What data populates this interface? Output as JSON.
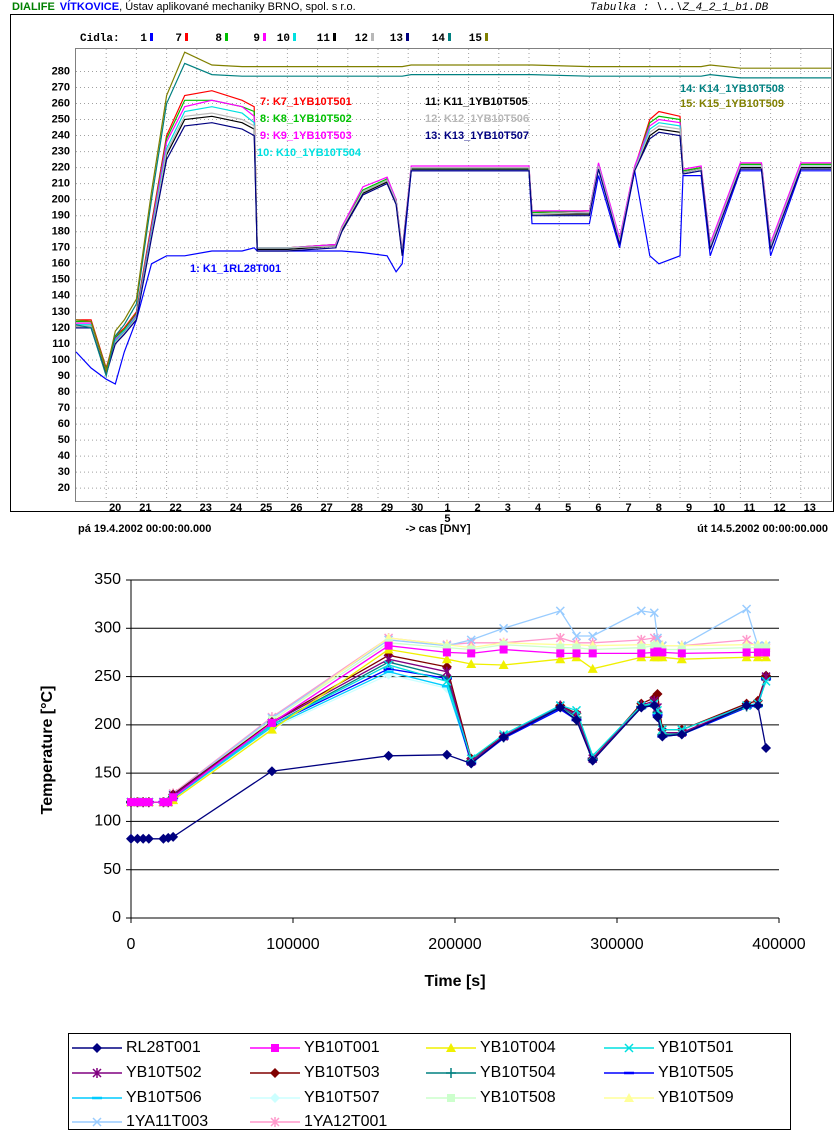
{
  "chart_data": [
    {
      "type": "line",
      "header": [
        "DIALIFE",
        "VÍTKOVICE",
        ", Ústav aplikované mechaniky BRNO, spol. s r.o."
      ],
      "subtitle": "Tabulka : \\..\\Z_4_2_1_b1.DB",
      "legend_title": "Cidla:",
      "x_start_label": "pá 19.4.2002 00:00:00.000",
      "x_end_label": "út 14.5.2002 00:00:00.000",
      "xlabel": "-> cas [DNY]",
      "month_label": "5",
      "xlim": [
        0,
        25
      ],
      "ylim": [
        12,
        294
      ],
      "grid": true,
      "xticks": [
        {
          "value": 1,
          "label": "20"
        },
        {
          "value": 2,
          "label": "21"
        },
        {
          "value": 3,
          "label": "22"
        },
        {
          "value": 4,
          "label": "23"
        },
        {
          "value": 5,
          "label": "24"
        },
        {
          "value": 6,
          "label": "25"
        },
        {
          "value": 7,
          "label": "26"
        },
        {
          "value": 8,
          "label": "27"
        },
        {
          "value": 9,
          "label": "28"
        },
        {
          "value": 10,
          "label": "29"
        },
        {
          "value": 11,
          "label": "30"
        },
        {
          "value": 12,
          "label": "1"
        },
        {
          "value": 13,
          "label": "2"
        },
        {
          "value": 14,
          "label": "3"
        },
        {
          "value": 15,
          "label": "4"
        },
        {
          "value": 16,
          "label": "5"
        },
        {
          "value": 17,
          "label": "6"
        },
        {
          "value": 18,
          "label": "7"
        },
        {
          "value": 19,
          "label": "8"
        },
        {
          "value": 20,
          "label": "9"
        },
        {
          "value": 21,
          "label": "10"
        },
        {
          "value": 22,
          "label": "11"
        },
        {
          "value": 23,
          "label": "12"
        },
        {
          "value": 24,
          "label": "13"
        }
      ],
      "yticks": [
        20,
        30,
        40,
        50,
        60,
        70,
        80,
        90,
        100,
        110,
        120,
        130,
        140,
        150,
        160,
        170,
        180,
        190,
        200,
        210,
        220,
        230,
        240,
        250,
        260,
        270,
        280
      ],
      "x": [
        0,
        0.5,
        1.0,
        1.3,
        1.6,
        2.0,
        2.5,
        3.0,
        3.6,
        4.5,
        5.5,
        5.9,
        6.0,
        7.0,
        8.6,
        8.8,
        9.5,
        10.3,
        10.6,
        10.8,
        11.1,
        13.0,
        15.0,
        15.1,
        17.0,
        17.3,
        18.0,
        18.5,
        19.0,
        19.3,
        20.0,
        20.1,
        20.7,
        21.0,
        22.0,
        22.7,
        23.0,
        24.0,
        25.0
      ],
      "series": [
        {
          "label": "1",
          "name": "1: K1_1RL28T001",
          "color": "#0000ff",
          "values": [
            105,
            95,
            88,
            85,
            105,
            125,
            160,
            165,
            165,
            168,
            168,
            170,
            168,
            168,
            168,
            168,
            167,
            165,
            155,
            160,
            218,
            218,
            218,
            185,
            185,
            215,
            170,
            218,
            165,
            160,
            165,
            215,
            215,
            165,
            218,
            218,
            165,
            218,
            218
          ]
        },
        {
          "label": "7",
          "name": "7: K7_1YB10T501",
          "color": "#ff0000",
          "values": [
            125,
            125,
            95,
            115,
            120,
            130,
            185,
            240,
            265,
            268,
            262,
            258,
            170,
            170,
            172,
            182,
            205,
            212,
            200,
            168,
            220,
            220,
            220,
            192,
            193,
            222,
            175,
            220,
            250,
            255,
            252,
            218,
            220,
            172,
            222,
            222,
            172,
            222,
            222
          ]
        },
        {
          "label": "8",
          "name": "8: K8_1YB10T502",
          "color": "#00c000",
          "values": [
            124,
            124,
            94,
            114,
            119,
            129,
            183,
            238,
            262,
            262,
            258,
            255,
            170,
            170,
            172,
            183,
            206,
            213,
            200,
            167,
            220,
            220,
            220,
            192,
            193,
            222,
            175,
            220,
            248,
            252,
            250,
            218,
            220,
            172,
            222,
            222,
            172,
            222,
            222
          ]
        },
        {
          "label": "9",
          "name": "9: K9_1YB10T503",
          "color": "#ff00ff",
          "values": [
            123,
            123,
            93,
            113,
            118,
            128,
            182,
            236,
            258,
            262,
            258,
            252,
            170,
            170,
            172,
            183,
            208,
            214,
            200,
            168,
            221,
            221,
            221,
            193,
            193,
            223,
            176,
            221,
            246,
            250,
            248,
            219,
            221,
            173,
            223,
            223,
            173,
            223,
            223
          ]
        },
        {
          "label": "10",
          "name": "10: K10_1YB10T504",
          "color": "#00e0e0",
          "values": [
            122,
            122,
            93,
            112,
            118,
            127,
            180,
            232,
            255,
            258,
            254,
            248,
            170,
            170,
            171,
            182,
            205,
            212,
            199,
            167,
            219,
            219,
            219,
            191,
            192,
            221,
            174,
            219,
            244,
            248,
            246,
            217,
            219,
            171,
            221,
            221,
            171,
            221,
            221
          ]
        },
        {
          "label": "11",
          "name": "11: K11_1YB10T505",
          "color": "#000000",
          "values": [
            121,
            121,
            92,
            111,
            117,
            126,
            178,
            228,
            250,
            252,
            248,
            244,
            169,
            169,
            171,
            181,
            204,
            211,
            198,
            166,
            219,
            219,
            219,
            191,
            191,
            220,
            173,
            219,
            240,
            244,
            242,
            217,
            219,
            170,
            220,
            220,
            170,
            220,
            220
          ]
        },
        {
          "label": "12",
          "name": "12: K12_1YB10T506",
          "color": "#b8b8b8",
          "values": [
            121,
            121,
            92,
            111,
            117,
            126,
            178,
            230,
            252,
            254,
            250,
            246,
            170,
            170,
            171,
            182,
            205,
            212,
            199,
            167,
            220,
            220,
            220,
            191,
            192,
            221,
            174,
            219,
            242,
            246,
            244,
            217,
            219,
            171,
            221,
            221,
            171,
            221,
            221
          ]
        },
        {
          "label": "13",
          "name": "13: K13_1YB10T507",
          "color": "#000080",
          "values": [
            120,
            120,
            91,
            110,
            116,
            125,
            176,
            225,
            246,
            248,
            244,
            240,
            168,
            168,
            170,
            180,
            203,
            210,
            197,
            165,
            218,
            218,
            218,
            190,
            190,
            219,
            172,
            218,
            238,
            242,
            240,
            216,
            218,
            169,
            219,
            219,
            169,
            219,
            219
          ]
        },
        {
          "label": "14",
          "name": "14: K14_1YB10T508",
          "color": "#008080",
          "values": [
            122,
            120,
            90,
            115,
            122,
            135,
            200,
            260,
            285,
            278,
            277,
            277,
            277,
            277,
            277,
            277,
            277,
            277,
            277,
            277,
            278,
            278,
            278,
            278,
            277,
            277,
            277,
            277,
            277,
            277,
            277,
            277,
            277,
            278,
            276,
            276,
            276,
            276,
            276
          ]
        },
        {
          "label": "15",
          "name": "15: K15_1YB10T509",
          "color": "#808000",
          "values": [
            125,
            124,
            93,
            118,
            125,
            138,
            205,
            265,
            292,
            284,
            283,
            283,
            283,
            283,
            283,
            283,
            283,
            283,
            283,
            283,
            284,
            284,
            284,
            284,
            283,
            283,
            283,
            283,
            283,
            283,
            283,
            283,
            283,
            284,
            282,
            282,
            282,
            282,
            282
          ]
        }
      ]
    },
    {
      "type": "scatter",
      "xlabel": "Time [s]",
      "ylabel": "Temperature [°C]",
      "xlim": [
        0,
        400000
      ],
      "ylim": [
        0,
        350
      ],
      "grid": true,
      "xticks": [
        0,
        100000,
        200000,
        300000,
        400000
      ],
      "yticks": [
        0,
        50,
        100,
        150,
        200,
        250,
        300,
        350
      ],
      "x": [
        0,
        4000,
        7500,
        11000,
        20000,
        23000,
        26000,
        87000,
        159000,
        195000,
        210000,
        230000,
        265000,
        275000,
        285000,
        315000,
        323000,
        325000,
        328000,
        340000,
        380000,
        387000,
        392000
      ],
      "series": [
        {
          "name": "RL28T001",
          "color": "#000080",
          "marker": "diamond",
          "values": [
            82,
            82,
            82,
            82,
            82,
            83,
            84,
            152,
            168,
            169,
            160,
            187,
            218,
            205,
            163,
            218,
            220,
            208,
            188,
            190,
            220,
            220,
            176
          ]
        },
        {
          "name": "YB10T001",
          "color": "#ff00ff",
          "marker": "square",
          "values": [
            120,
            120,
            120,
            120,
            120,
            120,
            125,
            202,
            282,
            275,
            274,
            278,
            274,
            274,
            274,
            274,
            275,
            276,
            275,
            274,
            275,
            275,
            275
          ]
        },
        {
          "name": "YB10T004",
          "color": "#f0f000",
          "marker": "triangle",
          "values": [
            120,
            120,
            120,
            120,
            120,
            120,
            122,
            195,
            278,
            268,
            263,
            262,
            268,
            270,
            258,
            270,
            270,
            270,
            270,
            268,
            270,
            270,
            270
          ]
        },
        {
          "name": "YB10T501",
          "color": "#00e0e0",
          "marker": "x",
          "values": [
            120,
            120,
            120,
            120,
            120,
            120,
            125,
            200,
            262,
            245,
            165,
            190,
            220,
            215,
            168,
            220,
            222,
            215,
            195,
            195,
            220,
            222,
            245
          ]
        },
        {
          "name": "YB10T502",
          "color": "#800080",
          "marker": "star",
          "values": [
            120,
            120,
            120,
            120,
            120,
            120,
            127,
            202,
            268,
            255,
            162,
            188,
            220,
            210,
            165,
            220,
            225,
            218,
            192,
            192,
            220,
            222,
            250
          ]
        },
        {
          "name": "YB10T503",
          "color": "#800000",
          "marker": "diamond",
          "values": [
            120,
            120,
            120,
            120,
            120,
            120,
            128,
            203,
            272,
            260,
            165,
            188,
            220,
            212,
            165,
            222,
            228,
            232,
            195,
            195,
            222,
            225,
            251
          ]
        },
        {
          "name": "YB10T504",
          "color": "#008080",
          "marker": "plus",
          "values": [
            120,
            120,
            120,
            120,
            120,
            120,
            126,
            200,
            265,
            250,
            163,
            187,
            219,
            208,
            164,
            219,
            222,
            213,
            190,
            191,
            219,
            221,
            249
          ]
        },
        {
          "name": "YB10T505",
          "color": "#0000ff",
          "marker": "dash",
          "values": [
            120,
            120,
            120,
            120,
            120,
            120,
            125,
            200,
            258,
            248,
            160,
            186,
            216,
            205,
            165,
            218,
            220,
            210,
            188,
            190,
            218,
            220,
            248
          ]
        },
        {
          "name": "YB10T506",
          "color": "#00ccff",
          "marker": "dash",
          "values": [
            120,
            120,
            120,
            120,
            120,
            120,
            124,
            198,
            255,
            240,
            162,
            186,
            217,
            206,
            164,
            218,
            221,
            211,
            189,
            190,
            218,
            220,
            247
          ]
        },
        {
          "name": "YB10T507",
          "color": "#ccffff",
          "marker": "diamond",
          "values": [
            120,
            120,
            120,
            120,
            120,
            120,
            123,
            196,
            252,
            238,
            163,
            187,
            218,
            207,
            165,
            219,
            221,
            212,
            190,
            191,
            219,
            221,
            246
          ]
        },
        {
          "name": "YB10T508",
          "color": "#ccffcc",
          "marker": "square",
          "values": [
            120,
            120,
            120,
            120,
            120,
            120,
            127,
            205,
            285,
            280,
            278,
            283,
            280,
            280,
            278,
            280,
            282,
            280,
            278,
            278,
            280,
            280,
            280
          ]
        },
        {
          "name": "YB10T509",
          "color": "#ffff99",
          "marker": "triangle",
          "values": [
            120,
            120,
            120,
            120,
            120,
            120,
            126,
            204,
            290,
            283,
            280,
            285,
            283,
            283,
            282,
            283,
            283,
            283,
            282,
            282,
            283,
            283,
            283
          ]
        },
        {
          "name": "1YA11T003",
          "color": "#99ccff",
          "marker": "x",
          "values": [
            120,
            120,
            120,
            120,
            120,
            120,
            128,
            207,
            288,
            282,
            288,
            300,
            318,
            292,
            292,
            318,
            316,
            290,
            282,
            282,
            320,
            282,
            282
          ]
        },
        {
          "name": "1YA12T001",
          "color": "#ff99cc",
          "marker": "star",
          "values": [
            120,
            120,
            120,
            120,
            120,
            120,
            129,
            208,
            290,
            283,
            285,
            285,
            290,
            285,
            285,
            288,
            290,
            288,
            282,
            282,
            288,
            280,
            280
          ]
        }
      ]
    }
  ]
}
